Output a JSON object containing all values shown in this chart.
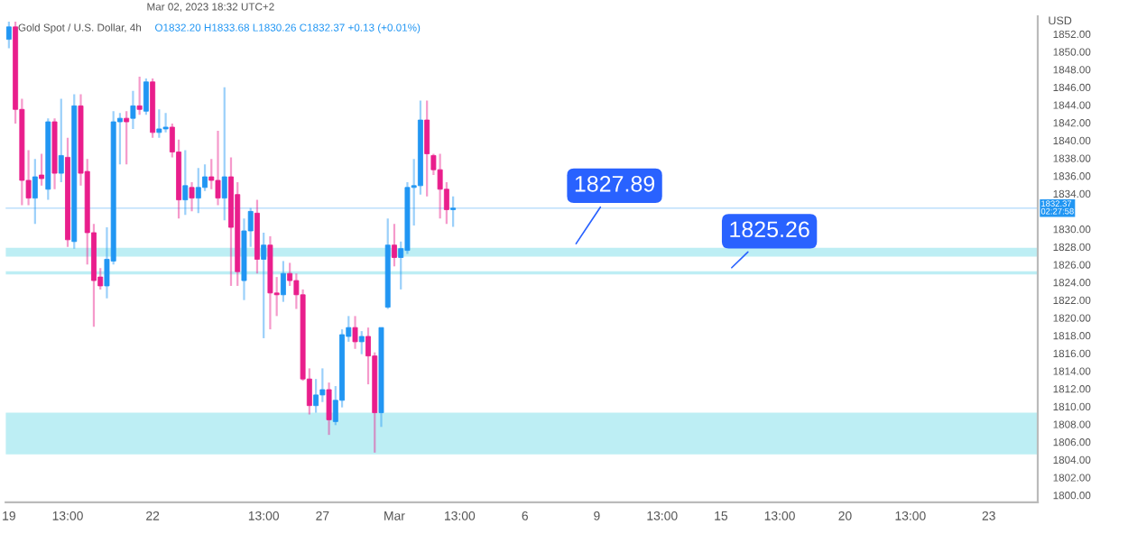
{
  "chart_data": {
    "type": "candlestick",
    "title": "Gold Spot / U.S. Dollar, 4h",
    "subtitle": "O1832.20 H1833.68 L1830.26 C1832.37 +0.13 (+0.01%)",
    "ylabel": "USD",
    "annotations": [
      "Mar 02, 2023 18:32 UTC+2"
    ],
    "categories": [
      "19",
      null,
      null,
      null,
      null,
      null,
      null,
      null,
      null,
      "13:00",
      null,
      null,
      null,
      null,
      null,
      null,
      null,
      null,
      null,
      null,
      null,
      null,
      "22",
      null,
      null,
      null,
      null,
      null,
      null,
      null,
      null,
      null,
      null,
      null,
      null,
      null,
      null,
      null,
      null,
      "13:00",
      null,
      null,
      null,
      null,
      null,
      null,
      null,
      null,
      "27",
      null,
      null,
      null,
      null,
      null,
      null,
      null,
      null,
      null,
      null,
      "Mar",
      null,
      null,
      null,
      null,
      null,
      null,
      null,
      null,
      null,
      "13:00",
      null,
      null,
      null,
      null,
      null,
      null,
      null,
      null,
      null,
      "6",
      null,
      null,
      null,
      null,
      null,
      null,
      null,
      null,
      null,
      null,
      "9",
      null,
      null,
      null,
      null,
      null,
      null,
      null,
      null,
      null,
      "13:00",
      null,
      null,
      null,
      null,
      null,
      null,
      null,
      null,
      "15",
      null,
      null,
      null,
      null,
      null,
      null,
      null,
      null,
      "13:00",
      null,
      null,
      null,
      null,
      null,
      null,
      null,
      null,
      null,
      "20",
      null,
      null,
      null,
      null,
      null,
      null,
      null,
      null,
      null,
      "13:00",
      null,
      null,
      null,
      null,
      null,
      null,
      null,
      null,
      null,
      null,
      null,
      "23",
      null,
      null,
      null,
      null,
      null,
      null,
      null
    ],
    "ohlc": [
      [
        1851.4,
        1853.4,
        1850.4,
        1852.8
      ],
      [
        1852.8,
        1853.4,
        1841.9,
        1843.5
      ],
      [
        1843.5,
        1844.7,
        1832.7,
        1835.5
      ],
      [
        1835.5,
        1838.9,
        1832.7,
        1833.5
      ],
      [
        1833.5,
        1837.9,
        1830.6,
        1835.9
      ],
      [
        1836.1,
        1838.5,
        1834.9,
        1835.7
      ],
      [
        1834.5,
        1842.5,
        1833.3,
        1842.1
      ],
      [
        1842.1,
        1842.5,
        1834.5,
        1836.3
      ],
      [
        1836.3,
        1844.7,
        1835.3,
        1838.3
      ],
      [
        1838.1,
        1840.3,
        1828.0,
        1828.8
      ],
      [
        1828.6,
        1845.2,
        1827.8,
        1843.9
      ],
      [
        1843.9,
        1845.2,
        1834.9,
        1836.3
      ],
      [
        1836.5,
        1837.9,
        1826.0,
        1829.6
      ],
      [
        1829.6,
        1830.6,
        1819.0,
        1824.2
      ],
      [
        1824.6,
        1825.6,
        1823.2,
        1823.6
      ],
      [
        1823.6,
        1830.2,
        1822.2,
        1826.6
      ],
      [
        1826.4,
        1843.3,
        1826.0,
        1842.1
      ],
      [
        1842.1,
        1843.1,
        1837.3,
        1842.5
      ],
      [
        1842.5,
        1843.3,
        1837.3,
        1842.1
      ],
      [
        1842.5,
        1845.6,
        1841.3,
        1843.9
      ],
      [
        1843.9,
        1847.2,
        1842.9,
        1843.5
      ],
      [
        1843.3,
        1847.0,
        1842.9,
        1846.6
      ],
      [
        1846.6,
        1847.0,
        1840.3,
        1840.9
      ],
      [
        1840.9,
        1843.5,
        1840.3,
        1841.3
      ],
      [
        1841.3,
        1843.1,
        1840.9,
        1841.5
      ],
      [
        1841.5,
        1841.9,
        1838.1,
        1838.7
      ],
      [
        1838.7,
        1840.1,
        1831.2,
        1833.3
      ],
      [
        1833.3,
        1838.9,
        1831.6,
        1834.9
      ],
      [
        1834.7,
        1835.3,
        1832.0,
        1833.5
      ],
      [
        1833.5,
        1836.9,
        1831.8,
        1834.7
      ],
      [
        1834.7,
        1837.3,
        1834.3,
        1835.9
      ],
      [
        1835.9,
        1837.9,
        1834.5,
        1835.5
      ],
      [
        1835.5,
        1841.1,
        1832.7,
        1833.5
      ],
      [
        1833.5,
        1846.0,
        1831.0,
        1835.9
      ],
      [
        1835.9,
        1838.1,
        1823.6,
        1830.2
      ],
      [
        1833.9,
        1835.3,
        1823.6,
        1825.2
      ],
      [
        1824.2,
        1831.2,
        1822.0,
        1829.8
      ],
      [
        1829.8,
        1832.4,
        1828.0,
        1832.0
      ],
      [
        1831.8,
        1833.3,
        1825.0,
        1826.6
      ],
      [
        1826.6,
        1829.6,
        1817.7,
        1828.2
      ],
      [
        1828.2,
        1829.2,
        1818.7,
        1822.8
      ],
      [
        1822.8,
        1824.6,
        1820.2,
        1822.6
      ],
      [
        1822.6,
        1826.4,
        1821.8,
        1825.0
      ],
      [
        1825.0,
        1826.2,
        1823.6,
        1824.2
      ],
      [
        1824.2,
        1825.0,
        1821.0,
        1822.6
      ],
      [
        1822.6,
        1823.2,
        1812.9,
        1813.1
      ],
      [
        1813.1,
        1814.3,
        1809.1,
        1810.1
      ],
      [
        1810.1,
        1813.1,
        1809.3,
        1811.3
      ],
      [
        1811.3,
        1814.3,
        1810.5,
        1811.9
      ],
      [
        1811.9,
        1812.7,
        1806.8,
        1808.5
      ],
      [
        1808.3,
        1812.3,
        1807.9,
        1810.7
      ],
      [
        1810.7,
        1818.7,
        1809.9,
        1818.1
      ],
      [
        1817.9,
        1820.2,
        1817.3,
        1818.9
      ],
      [
        1818.9,
        1820.2,
        1816.5,
        1817.3
      ],
      [
        1817.3,
        1818.5,
        1815.9,
        1817.9
      ],
      [
        1817.9,
        1818.9,
        1812.5,
        1815.7
      ],
      [
        1815.7,
        1816.1,
        1804.8,
        1809.3
      ],
      [
        1809.3,
        1818.9,
        1807.7,
        1818.9
      ],
      [
        1821.2,
        1831.2,
        1821.0,
        1828.2
      ],
      [
        1828.2,
        1830.6,
        1825.8,
        1826.8
      ],
      [
        1826.8,
        1828.6,
        1823.2,
        1827.8
      ],
      [
        1827.6,
        1835.3,
        1827.2,
        1834.7
      ],
      [
        1834.7,
        1837.9,
        1830.4,
        1834.9
      ],
      [
        1834.9,
        1844.5,
        1833.9,
        1842.3
      ],
      [
        1842.3,
        1844.5,
        1833.7,
        1838.5
      ],
      [
        1838.3,
        1838.5,
        1836.1,
        1836.7
      ],
      [
        1836.7,
        1838.5,
        1831.2,
        1834.5
      ],
      [
        1834.5,
        1835.3,
        1830.6,
        1832.2
      ],
      [
        1832.2,
        1833.68,
        1830.26,
        1832.37
      ],
      null,
      null,
      null,
      null,
      null,
      null,
      null,
      null,
      null,
      null,
      null,
      null,
      null,
      null,
      null,
      null,
      null,
      null,
      null,
      null,
      null,
      null,
      null,
      null,
      null,
      null,
      null,
      null,
      null,
      null,
      null,
      null,
      null,
      null,
      null,
      null,
      null,
      null,
      null,
      null,
      null,
      null,
      null,
      null,
      null,
      null,
      null,
      null,
      null,
      null,
      null,
      null,
      null,
      null,
      null,
      null,
      null,
      null,
      null,
      null,
      null,
      null,
      null,
      null,
      null,
      null,
      null,
      null,
      null,
      null,
      null,
      null,
      null,
      null,
      null,
      null,
      null,
      null,
      null,
      null,
      null,
      null,
      null,
      null,
      null,
      null,
      null,
      null,
      null
    ],
    "colors": [
      "#2196f3",
      "#e91e8c",
      "#e91e8c",
      "#e91e8c",
      "#2196f3",
      "#e91e8c",
      "#2196f3",
      "#e91e8c",
      "#2196f3",
      "#e91e8c",
      "#2196f3",
      "#e91e8c",
      "#e91e8c",
      "#e91e8c",
      "#e91e8c",
      "#2196f3",
      "#2196f3",
      "#2196f3",
      "#e91e8c",
      "#2196f3",
      "#e91e8c",
      "#2196f3",
      "#e91e8c",
      "#2196f3",
      "#2196f3",
      "#e91e8c",
      "#e91e8c",
      "#2196f3",
      "#e91e8c",
      "#2196f3",
      "#2196f3",
      "#e91e8c",
      "#e91e8c",
      "#2196f3",
      "#e91e8c",
      "#e91e8c",
      "#2196f3",
      "#2196f3",
      "#e91e8c",
      "#2196f3",
      "#e91e8c",
      "#e91e8c",
      "#2196f3",
      "#e91e8c",
      "#e91e8c",
      "#e91e8c",
      "#e91e8c",
      "#2196f3",
      "#2196f3",
      "#e91e8c",
      "#2196f3",
      "#2196f3",
      "#2196f3",
      "#e91e8c",
      "#2196f3",
      "#e91e8c",
      "#e91e8c",
      "#2196f3",
      "#2196f3",
      "#e91e8c",
      "#2196f3",
      "#2196f3",
      "#2196f3",
      "#2196f3",
      "#e91e8c",
      "#e91e8c",
      "#e91e8c",
      "#e91e8c",
      "#2196f3",
      null,
      null,
      null,
      null,
      null,
      null,
      null,
      null,
      null,
      null,
      null,
      null,
      null,
      null,
      null,
      null,
      null,
      null,
      null,
      null,
      null,
      null,
      null,
      null,
      null,
      null,
      null,
      null,
      null,
      null,
      null,
      null,
      null,
      null,
      null,
      null,
      null,
      null,
      null,
      null,
      null,
      null,
      null,
      null,
      null,
      null,
      null,
      null,
      null,
      null,
      null,
      null,
      null,
      null,
      null,
      null,
      null,
      null,
      null,
      null,
      null,
      null,
      null,
      null,
      null,
      null,
      null,
      null,
      null,
      null,
      null,
      null,
      null,
      null,
      null,
      null,
      null,
      null,
      null,
      null,
      null,
      null,
      null,
      null,
      null,
      null,
      null,
      null,
      null
    ],
    "ylim": [
      1799.2,
      1854
    ],
    "yticks": [
      {
        "value": 1800,
        "label": "1800.00"
      },
      {
        "value": 1802,
        "label": "1802.00"
      },
      {
        "value": 1804,
        "label": "1804.00"
      },
      {
        "value": 1806,
        "label": "1806.00"
      },
      {
        "value": 1808,
        "label": "1808.00"
      },
      {
        "value": 1810,
        "label": "1810.00"
      },
      {
        "value": 1812,
        "label": "1812.00"
      },
      {
        "value": 1814,
        "label": "1814.00"
      },
      {
        "value": 1816,
        "label": "1816.00"
      },
      {
        "value": 1818,
        "label": "1818.00"
      },
      {
        "value": 1820,
        "label": "1820.00"
      },
      {
        "value": 1822,
        "label": "1822.00"
      },
      {
        "value": 1824,
        "label": "1824.00"
      },
      {
        "value": 1826,
        "label": "1826.00"
      },
      {
        "value": 1828,
        "label": "1828.00"
      },
      {
        "value": 1830,
        "label": "1830.00"
      },
      {
        "value": 1834,
        "label": "1834.00"
      },
      {
        "value": 1836,
        "label": "1836.00"
      },
      {
        "value": 1838,
        "label": "1838.00"
      },
      {
        "value": 1840,
        "label": "1840.00"
      },
      {
        "value": 1842,
        "label": "1842.00"
      },
      {
        "value": 1844,
        "label": "1844.00"
      },
      {
        "value": 1846,
        "label": "1846.00"
      },
      {
        "value": 1848,
        "label": "1848.00"
      },
      {
        "value": 1850,
        "label": "1850.00"
      },
      {
        "value": 1852,
        "label": "1852.00"
      }
    ],
    "ref_lines": [
      {
        "axis": "y",
        "value": 1832.37,
        "label": "1832.37\n02:27:58",
        "color": "#2196f3"
      }
    ],
    "bands": [
      {
        "axis": "y",
        "from": 1826.9,
        "to": 1827.89,
        "label": "1827.89",
        "color": "#b2ebf2"
      },
      {
        "axis": "y",
        "from": 1824.9,
        "to": 1825.26,
        "label": "1825.26",
        "color": "#b2ebf2"
      },
      {
        "axis": "y",
        "from": 1804.6,
        "to": 1809.3,
        "color": "#b2ebf2"
      }
    ],
    "grid": false
  }
}
